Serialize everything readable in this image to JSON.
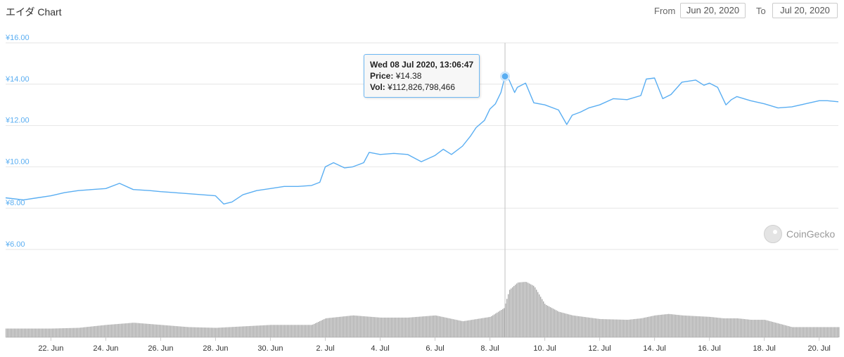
{
  "title": "エイダ Chart",
  "range": {
    "from_label": "From",
    "from_value": "Jun 20, 2020",
    "to_label": "To",
    "to_value": "Jul 20, 2020"
  },
  "tooltip": {
    "date": "Wed 08 Jul 2020, 13:06:47",
    "price_label": "Price:",
    "price_value": "¥14.38",
    "vol_label": "Vol:",
    "vol_value": "¥112,826,798,466"
  },
  "watermark": "CoinGecko",
  "colors": {
    "line": "#5aaef2",
    "volume": "#a8a8a8",
    "grid": "#e6e6e6",
    "tick_y": "#5aaef2"
  },
  "chart_data": {
    "type": "line",
    "ylim": [
      6,
      16
    ],
    "yticks": [
      "¥6.00",
      "¥8.00",
      "¥10.00",
      "¥12.00",
      "¥14.00",
      "¥16.00"
    ],
    "yticks_values": [
      6,
      8,
      10,
      12,
      14,
      16
    ],
    "xticks": [
      "22. Jun",
      "24. Jun",
      "26. Jun",
      "28. Jun",
      "30. Jun",
      "2. Jul",
      "4. Jul",
      "6. Jul",
      "8. Jul",
      "10. Jul",
      "12. Jul",
      "14. Jul",
      "16. Jul",
      "18. Jul",
      "20. Jul"
    ],
    "xticks_days": [
      1,
      3,
      5,
      7,
      9,
      11,
      13,
      15,
      17,
      19,
      21,
      23,
      25,
      27,
      29
    ],
    "xrange_days": [
      -0.65,
      29.7
    ],
    "grid": true,
    "highlight": {
      "day": 17.55,
      "price": 14.38
    },
    "series": [
      {
        "values_day": [
          -0.65,
          0.0,
          0.5,
          1.0,
          1.5,
          2.0,
          2.5,
          3.0,
          3.5,
          4.0,
          4.6,
          5.0,
          5.5,
          6.0,
          6.5,
          7.0,
          7.3,
          7.6,
          8.0,
          8.5,
          9.0,
          9.5,
          10.0,
          10.5,
          10.8,
          11.0,
          11.3,
          11.7,
          12.0,
          12.4,
          12.6,
          13.0,
          13.5,
          14.0,
          14.5,
          15.0,
          15.3,
          15.6,
          16.0,
          16.3,
          16.5,
          16.8,
          17.0,
          17.2,
          17.4,
          17.55,
          17.7,
          17.9,
          18.0,
          18.3,
          18.6,
          19.0,
          19.5,
          19.8,
          20.0,
          20.3,
          20.6,
          21.0,
          21.5,
          22.0,
          22.5,
          22.7,
          23.0,
          23.3,
          23.6,
          24.0,
          24.5,
          24.8,
          25.0,
          25.3,
          25.6,
          25.8,
          26.0,
          26.5,
          27.0,
          27.5,
          28.0,
          28.5,
          29.0,
          29.3,
          29.7
        ],
        "values_price": [
          8.5,
          8.4,
          8.5,
          8.6,
          8.75,
          8.85,
          8.9,
          8.95,
          9.2,
          8.9,
          8.85,
          8.8,
          8.75,
          8.7,
          8.65,
          8.6,
          8.2,
          8.3,
          8.65,
          8.85,
          8.95,
          9.05,
          9.05,
          9.1,
          9.25,
          10.0,
          10.2,
          9.95,
          10.0,
          10.2,
          10.7,
          10.6,
          10.65,
          10.6,
          10.25,
          10.55,
          10.85,
          10.6,
          11.0,
          11.5,
          11.9,
          12.25,
          12.8,
          13.05,
          13.6,
          14.38,
          14.2,
          13.6,
          13.85,
          14.05,
          13.1,
          13.0,
          12.75,
          12.05,
          12.5,
          12.65,
          12.85,
          13.0,
          13.3,
          13.25,
          13.45,
          14.25,
          14.3,
          13.3,
          13.5,
          14.1,
          14.2,
          13.95,
          14.05,
          13.85,
          13.0,
          13.25,
          13.4,
          13.2,
          13.05,
          12.85,
          12.9,
          13.05,
          13.2,
          13.2,
          13.15
        ]
      }
    ],
    "volume": {
      "days": [
        -0.65,
        0.0,
        1.0,
        2.0,
        3.0,
        4.0,
        5.0,
        6.0,
        7.0,
        8.0,
        9.0,
        10.0,
        10.5,
        11.0,
        12.0,
        13.0,
        14.0,
        15.0,
        16.0,
        16.5,
        17.0,
        17.5,
        17.7,
        18.0,
        18.3,
        18.6,
        19.0,
        19.5,
        20.0,
        21.0,
        22.0,
        22.5,
        23.0,
        23.5,
        24.0,
        25.0,
        25.5,
        26.0,
        26.5,
        27.0,
        28.0,
        29.0,
        29.7
      ],
      "relative": [
        0.12,
        0.12,
        0.12,
        0.13,
        0.17,
        0.2,
        0.17,
        0.14,
        0.13,
        0.15,
        0.17,
        0.17,
        0.17,
        0.26,
        0.3,
        0.27,
        0.27,
        0.3,
        0.22,
        0.25,
        0.28,
        0.4,
        0.65,
        0.75,
        0.76,
        0.7,
        0.45,
        0.35,
        0.3,
        0.25,
        0.24,
        0.26,
        0.3,
        0.32,
        0.3,
        0.28,
        0.26,
        0.26,
        0.24,
        0.24,
        0.14,
        0.14,
        0.14
      ]
    }
  }
}
